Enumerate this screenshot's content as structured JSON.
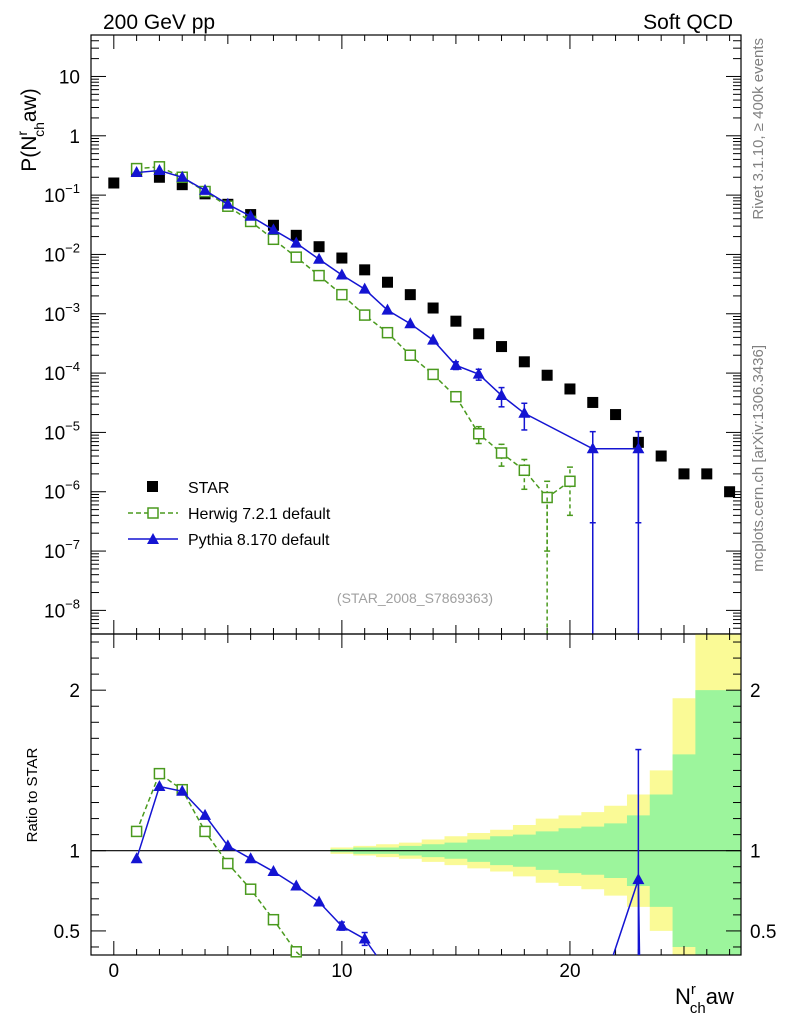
{
  "header": {
    "left": "200 GeV pp",
    "right": "Soft QCD"
  },
  "side_labels": {
    "rivet": "Rivet 3.1.10, ≥ 400k events",
    "mcplots": "mcplots.cern.ch [arXiv:1306.3436]"
  },
  "analysis_id": "(STAR_2008_S7869363)",
  "colors": {
    "star": "#000000",
    "herwig": "#4a9a1e",
    "pythia": "#1414d2",
    "band_inner": "#9cf59c",
    "band_outer": "#fafa96"
  },
  "chart_data": [
    {
      "type": "scatter",
      "name": "main",
      "yscale": "log",
      "xlim": [
        -1,
        27.5
      ],
      "ylim": [
        4e-09,
        50
      ],
      "ylabel": "P(N_ch^raw)",
      "ylabel_main": "P(N",
      "ylabel_sup": "r",
      "ylabel_sub": "ch",
      "ylabel_tail": "aw)",
      "yticks": [
        {
          "v": 1e-08,
          "base": "10",
          "exp": "−8"
        },
        {
          "v": 1e-07,
          "base": "10",
          "exp": "−7"
        },
        {
          "v": 1e-06,
          "base": "10",
          "exp": "−6"
        },
        {
          "v": 1e-05,
          "base": "10",
          "exp": "−5"
        },
        {
          "v": 0.0001,
          "base": "10",
          "exp": "−4"
        },
        {
          "v": 0.001,
          "base": "10",
          "exp": "−3"
        },
        {
          "v": 0.01,
          "base": "10",
          "exp": "−2"
        },
        {
          "v": 0.1,
          "base": "10",
          "exp": "−1"
        },
        {
          "v": 1,
          "base": "1",
          "exp": ""
        },
        {
          "v": 10,
          "base": "10",
          "exp": ""
        }
      ],
      "legend": [
        {
          "key": "star",
          "label": "STAR"
        },
        {
          "key": "herwig",
          "label": "Herwig 7.2.1 default"
        },
        {
          "key": "pythia",
          "label": "Pythia 8.170 default"
        }
      ],
      "series": [
        {
          "name": "STAR",
          "key": "star",
          "marker": "square-filled",
          "x": [
            0,
            1,
            2,
            3,
            4,
            5,
            6,
            7,
            8,
            9,
            10,
            11,
            12,
            13,
            14,
            15,
            16,
            17,
            18,
            19,
            20,
            21,
            22,
            23,
            24,
            25,
            26,
            27
          ],
          "y": [
            0.16,
            0.25,
            0.2,
            0.15,
            0.105,
            0.07,
            0.047,
            0.031,
            0.021,
            0.0135,
            0.0087,
            0.0055,
            0.0034,
            0.0021,
            0.00125,
            0.00075,
            0.00046,
            0.00028,
            0.000155,
            9.2e-05,
            5.4e-05,
            3.2e-05,
            2e-05,
            6.8e-06,
            4e-06,
            2e-06,
            2e-06,
            1e-06
          ]
        },
        {
          "name": "Herwig 7.2.1 default",
          "key": "herwig",
          "marker": "square-open",
          "line": "dashed",
          "x": [
            1,
            2,
            3,
            4,
            5,
            6,
            7,
            8,
            9,
            10,
            11,
            12,
            13,
            14,
            15,
            16,
            17,
            18,
            19,
            20
          ],
          "y": [
            0.28,
            0.3,
            0.2,
            0.115,
            0.065,
            0.036,
            0.018,
            0.009,
            0.0044,
            0.0021,
            0.00095,
            0.00048,
            0.0002,
            9.5e-05,
            4e-05,
            9.5e-06,
            4.5e-06,
            2.3e-06,
            8e-07,
            1.5e-06
          ],
          "err": [
            0,
            0,
            0,
            0,
            0,
            0,
            0,
            0,
            0,
            0,
            0,
            0,
            0,
            0,
            5e-06,
            3e-06,
            1.8e-06,
            1.2e-06,
            7e-07,
            1.1e-06
          ]
        },
        {
          "name": "Pythia 8.170 default",
          "key": "pythia",
          "marker": "triangle-filled",
          "line": "solid",
          "x": [
            1,
            2,
            3,
            4,
            5,
            6,
            7,
            8,
            9,
            10,
            11,
            12,
            13,
            14,
            15,
            16,
            17,
            18,
            21,
            23
          ],
          "y": [
            0.24,
            0.26,
            0.2,
            0.12,
            0.07,
            0.044,
            0.026,
            0.0155,
            0.0083,
            0.0045,
            0.0026,
            0.00115,
            0.00068,
            0.00036,
            0.000135,
            9.6e-05,
            4.2e-05,
            2.1e-05,
            5.3e-06,
            5.3e-06
          ],
          "err": [
            0,
            0,
            0,
            0,
            0,
            0,
            0,
            0,
            0,
            0,
            0,
            0,
            0,
            0,
            2e-05,
            2e-05,
            1.5e-05,
            1e-05,
            5e-06,
            5e-06
          ]
        }
      ]
    },
    {
      "type": "line",
      "name": "ratio",
      "xlim": [
        -1,
        27.5
      ],
      "ylim": [
        0.35,
        2.35
      ],
      "ylabel": "Ratio to STAR",
      "xlabel": "N_ch^raw",
      "xlabel_main": "N",
      "xlabel_sup": "r",
      "xlabel_sub": "ch",
      "xlabel_tail": "aw",
      "xticks": [
        0,
        10,
        20
      ],
      "yticks": [
        0.5,
        1,
        2
      ],
      "ytick_labels": [
        "0.5",
        "1",
        "2"
      ],
      "reference": 1,
      "band_x": [
        10,
        11,
        12,
        13,
        14,
        15,
        16,
        17,
        18,
        19,
        20,
        21,
        22,
        23,
        24,
        25,
        26,
        27
      ],
      "band_inner": [
        0.01,
        0.02,
        0.02,
        0.03,
        0.04,
        0.05,
        0.07,
        0.09,
        0.1,
        0.12,
        0.14,
        0.15,
        0.17,
        0.22,
        0.35,
        0.6,
        1.0,
        1.0
      ],
      "band_outer": [
        0.02,
        0.03,
        0.04,
        0.05,
        0.07,
        0.09,
        0.11,
        0.13,
        0.16,
        0.2,
        0.22,
        0.24,
        0.28,
        0.35,
        0.5,
        0.95,
        1.4,
        1.8
      ],
      "series": [
        {
          "name": "Herwig 7.2.1 default",
          "key": "herwig",
          "marker": "square-open",
          "line": "dashed",
          "x": [
            1,
            2,
            3,
            4,
            5,
            6,
            7,
            8
          ],
          "y": [
            1.12,
            1.48,
            1.38,
            1.12,
            0.92,
            0.76,
            0.57,
            0.37
          ]
        },
        {
          "name": "Pythia 8.170 default",
          "key": "pythia",
          "marker": "triangle-filled",
          "line": "solid",
          "x": [
            1,
            2,
            3,
            4,
            5,
            6,
            7,
            8,
            9,
            10,
            11
          ],
          "y": [
            0.95,
            1.4,
            1.37,
            1.22,
            1.03,
            0.95,
            0.87,
            0.78,
            0.68,
            0.53,
            0.45
          ],
          "err": [
            0,
            0,
            0,
            0,
            0,
            0,
            0,
            0,
            0,
            0.025,
            0.04
          ]
        }
      ]
    }
  ]
}
